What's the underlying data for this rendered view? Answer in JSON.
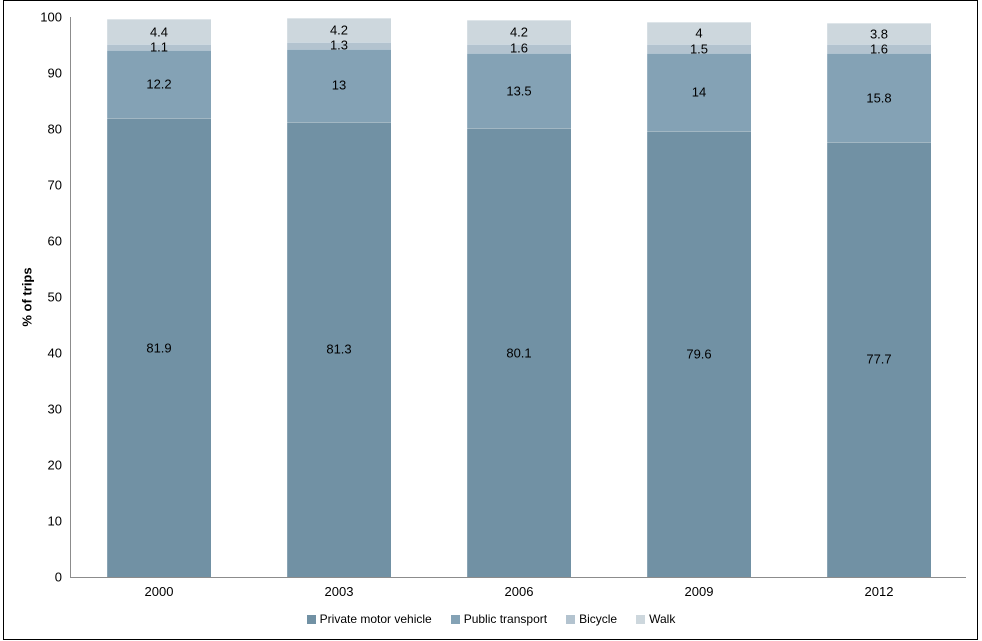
{
  "chart_data": {
    "type": "bar",
    "stacked": true,
    "title": "",
    "categories": [
      "2000",
      "2003",
      "2006",
      "2009",
      "2012"
    ],
    "series": [
      {
        "name": "Private motor vehicle",
        "color": "#7191A4",
        "values": [
          81.9,
          81.3,
          80.1,
          79.6,
          77.7
        ]
      },
      {
        "name": "Public transport",
        "color": "#84A2B5",
        "values": [
          12.2,
          13,
          13.5,
          14,
          15.8
        ]
      },
      {
        "name": "Bicycle",
        "color": "#B3C3CF",
        "values": [
          1.1,
          1.3,
          1.6,
          1.5,
          1.6
        ]
      },
      {
        "name": "Walk",
        "color": "#CDD7DD",
        "values": [
          4.4,
          4.2,
          4.2,
          4,
          3.8
        ]
      }
    ],
    "xlabel": "",
    "ylabel": "% of trips",
    "ylim": [
      0,
      100
    ],
    "yticks": [
      0,
      10,
      20,
      30,
      40,
      50,
      60,
      70,
      80,
      90,
      100
    ],
    "legend_position": "bottom",
    "grid": false,
    "data_labels": true
  },
  "colors": {
    "axis": "#8C8C8C",
    "text": "#000000",
    "background": "#FFFFFF",
    "border": "#000000"
  }
}
